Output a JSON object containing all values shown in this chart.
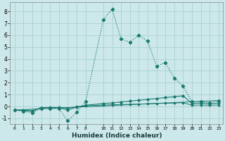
{
  "xlabel": "Humidex (Indice chaleur)",
  "bg_color": "#cce8ea",
  "grid_color": "#aad0d4",
  "line_color": "#1a7a6e",
  "xlim": [
    -0.5,
    23.5
  ],
  "ylim": [
    -1.5,
    8.8
  ],
  "xticks": [
    0,
    1,
    2,
    3,
    4,
    5,
    6,
    7,
    8,
    10,
    11,
    12,
    13,
    14,
    15,
    16,
    17,
    18,
    19,
    20,
    21,
    22,
    23
  ],
  "yticks": [
    -1,
    0,
    1,
    2,
    3,
    4,
    5,
    6,
    7,
    8
  ],
  "series1_x": [
    0,
    1,
    2,
    3,
    4,
    5,
    6,
    7,
    8,
    10,
    11,
    12,
    13,
    14,
    15,
    16,
    17,
    18,
    19,
    20,
    21,
    22,
    23
  ],
  "series1_y": [
    -0.3,
    -0.4,
    -0.55,
    -0.15,
    -0.15,
    -0.2,
    -1.2,
    -0.5,
    0.4,
    7.3,
    8.2,
    5.7,
    5.4,
    6.0,
    5.5,
    3.4,
    3.7,
    2.4,
    1.7,
    0.4,
    0.4,
    0.3,
    0.5
  ],
  "series2_x": [
    0,
    1,
    2,
    3,
    4,
    5,
    6,
    7,
    8,
    10,
    11,
    12,
    13,
    14,
    15,
    16,
    17,
    18,
    19,
    20,
    21,
    22,
    23
  ],
  "series2_y": [
    -0.3,
    -0.35,
    -0.4,
    -0.1,
    -0.1,
    -0.1,
    -0.3,
    -0.05,
    0.1,
    0.25,
    0.3,
    0.38,
    0.45,
    0.52,
    0.6,
    0.67,
    0.75,
    0.82,
    0.9,
    0.25,
    0.28,
    0.22,
    0.3
  ],
  "series3_x": [
    0,
    1,
    2,
    3,
    4,
    5,
    6,
    7,
    8,
    10,
    11,
    12,
    13,
    14,
    15,
    16,
    17,
    18,
    19,
    20,
    21,
    22,
    23
  ],
  "series3_y": [
    -0.3,
    -0.32,
    -0.35,
    -0.1,
    -0.08,
    -0.08,
    -0.15,
    -0.02,
    0.05,
    0.12,
    0.14,
    0.16,
    0.18,
    0.2,
    0.22,
    0.25,
    0.27,
    0.29,
    0.32,
    0.1,
    0.12,
    0.09,
    0.13
  ],
  "series4_x": [
    0,
    23
  ],
  "series4_y": [
    -0.3,
    0.5
  ]
}
